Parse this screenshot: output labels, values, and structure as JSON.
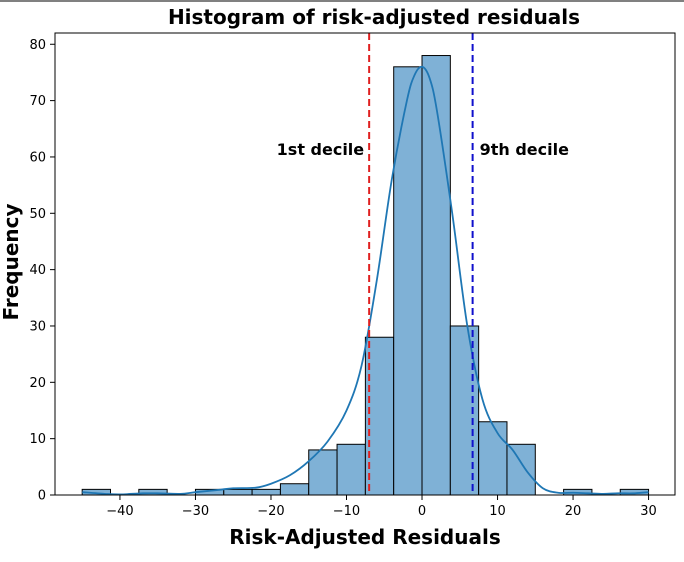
{
  "chart_data": {
    "type": "bar",
    "title": "Histogram of risk-adjusted residuals",
    "xlabel": "Risk-Adjusted Residuals",
    "ylabel": "Frequency",
    "xlim": [
      -48.6,
      33.5
    ],
    "ylim": [
      0,
      82
    ],
    "x_ticks": [
      -40,
      -30,
      -20,
      -10,
      0,
      10,
      20,
      30
    ],
    "y_ticks": [
      0,
      10,
      20,
      30,
      40,
      50,
      60,
      70,
      80
    ],
    "bin_width": 3.75,
    "bins": [
      {
        "start": -45,
        "count": 1
      },
      {
        "start": -41.25,
        "count": 0
      },
      {
        "start": -37.5,
        "count": 1
      },
      {
        "start": -33.75,
        "count": 0
      },
      {
        "start": -30,
        "count": 1
      },
      {
        "start": -26.25,
        "count": 1
      },
      {
        "start": -22.5,
        "count": 1
      },
      {
        "start": -18.75,
        "count": 2
      },
      {
        "start": -15,
        "count": 8
      },
      {
        "start": -11.25,
        "count": 9
      },
      {
        "start": -7.5,
        "count": 28
      },
      {
        "start": -3.75,
        "count": 76
      },
      {
        "start": 0,
        "count": 78
      },
      {
        "start": 3.75,
        "count": 30
      },
      {
        "start": 7.5,
        "count": 13
      },
      {
        "start": 11.25,
        "count": 9
      },
      {
        "start": 15,
        "count": 0
      },
      {
        "start": 18.75,
        "count": 1
      },
      {
        "start": 22.5,
        "count": 0
      },
      {
        "start": 26.25,
        "count": 1
      }
    ],
    "kde": {
      "x": [
        -45,
        -42,
        -40,
        -37,
        -35,
        -32,
        -30,
        -27,
        -25,
        -22,
        -20,
        -17.5,
        -15,
        -12.5,
        -10,
        -8,
        -6,
        -4,
        -2,
        -1,
        0,
        1,
        2,
        4,
        6,
        8,
        10,
        12,
        14,
        16,
        18,
        20,
        22,
        24,
        26,
        28,
        30
      ],
      "y": [
        0.5,
        0.2,
        0.1,
        0.3,
        0.3,
        0.2,
        0.5,
        0.9,
        1.2,
        1.3,
        2.0,
        3.5,
        6.0,
        9.5,
        15.0,
        23.0,
        38.0,
        56.0,
        70.0,
        74.5,
        76.0,
        74.0,
        68.0,
        50.0,
        30.0,
        17.0,
        11.0,
        8.0,
        4.0,
        1.2,
        0.4,
        0.4,
        0.3,
        0.2,
        0.3,
        0.3,
        0.5
      ]
    },
    "vlines": [
      {
        "label": "1st decile",
        "x": -7,
        "color": "#e02020"
      },
      {
        "label": "9th decile",
        "x": 6.7,
        "color": "#1010cc"
      }
    ],
    "bar_color": "#7fb1d6",
    "kde_color": "#1f77b4",
    "grid": false,
    "legend": "none"
  }
}
